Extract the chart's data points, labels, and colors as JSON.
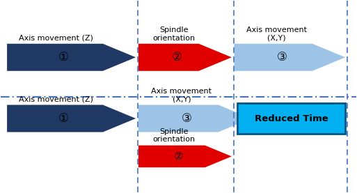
{
  "fig_width": 5.13,
  "fig_height": 2.77,
  "bg_color": "#ffffff",
  "dark_blue": "#1F3864",
  "light_blue": "#9DC3E6",
  "red": "#E00000",
  "teal_box": "#00B0F0",
  "dashed_line_color": "#4472C4",
  "arrow1_num": "①",
  "arrow2_num": "②",
  "arrow3_num": "③",
  "reduced_time_label": "Reduced Time",
  "top_label1": "Axis movement (Z)",
  "top_label2": "Spindle\norientation",
  "top_label3": "Axis movement\n(X,Y)",
  "bot_label1": "Axis movement (Z)",
  "bot_label2": "Axis movement\n(X,Y)",
  "bot_label3": "Spindle\norientation"
}
